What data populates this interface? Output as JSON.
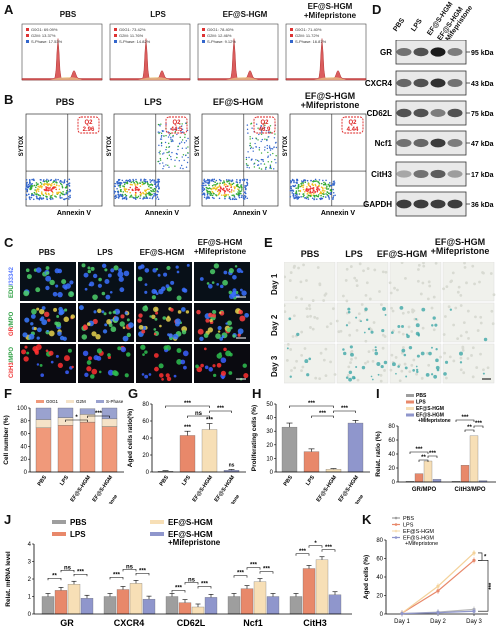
{
  "groups": [
    "PBS",
    "LPS",
    "EF@S-HGM",
    "EF@S-HGM\n+Mifepristone"
  ],
  "groups_short": [
    "PBS",
    "LPS",
    "EF@S-HGM",
    "EF@S-HGM +Mifepristone"
  ],
  "panelA": {
    "label": "A",
    "legends": [
      [
        "G0G1: 69.09%",
        "G2M: 13.37%",
        "S-Phase: 17.53%"
      ],
      [
        "G0G1: 73.42%",
        "G2M: 11.76%",
        "S-Phase: 14.82%"
      ],
      [
        "G0G1: 78.40%",
        "G2M: 12.46%",
        "S-Phase: 9.12%"
      ],
      [
        "G0G1: 71.40%",
        "G2M: 11.72%",
        "S-Phase: 16.87%"
      ]
    ]
  },
  "panelB": {
    "label": "B",
    "ylabel": "SYTOX",
    "xlabel": "Annexin V",
    "quad": "Q2",
    "values": [
      "2.96",
      "44.5",
      "46.9",
      "4.44"
    ]
  },
  "panelC": {
    "label": "C",
    "rows": [
      "EDU/33342",
      "GR/MPO",
      "CitH3/MPO"
    ],
    "scalebar": "20 μm"
  },
  "panelD": {
    "label": "D",
    "proteins": [
      "GR",
      "CXCR4",
      "CD62L",
      "Ncf1",
      "CitH3",
      "GAPDH"
    ],
    "sizes": [
      "95 kDa",
      "43 kDa",
      "75 kDa",
      "47 kDa",
      "17 kDa",
      "36 kDa"
    ]
  },
  "panelE": {
    "label": "E",
    "days": [
      "Day 1",
      "Day 2",
      "Day 3"
    ],
    "scalebar": "100 μm"
  },
  "panelF": {
    "label": "F",
    "ylabel": "Cell number (%)",
    "legend": [
      "G0G1",
      "G2M",
      "S-Phase"
    ],
    "colors": [
      "#f0997a",
      "#f5e3c8",
      "#9aa2cf"
    ],
    "ticks": [
      "0",
      "20",
      "40",
      "60",
      "80",
      "100"
    ],
    "stars": [
      "*",
      "***"
    ]
  },
  "panelG": {
    "label": "G",
    "ylabel": "Aged cells ratio(%)",
    "ticks": [
      "0",
      "20",
      "40",
      "60",
      "80"
    ],
    "sig": [
      "***",
      "***",
      "***",
      "ns",
      "***",
      "ns"
    ]
  },
  "panelH": {
    "label": "H",
    "ylabel": "Proliferating cells (%)",
    "ticks": [
      "0",
      "10",
      "20",
      "30",
      "40",
      "50"
    ],
    "sig": [
      "***",
      "***",
      "***"
    ]
  },
  "panelI": {
    "label": "I",
    "ylabel": "Relat. ratio (%)",
    "ticks": [
      "0",
      "20",
      "40",
      "60",
      "80"
    ],
    "cats": [
      "GR/MPO",
      "CitH3/MPO"
    ],
    "sig": [
      "***",
      "**",
      "***",
      "***",
      "**",
      "***"
    ]
  },
  "panelJ": {
    "label": "J",
    "ylabel": "Relat. mRNA level",
    "ticks": [
      "0",
      "1",
      "2",
      "3",
      "4"
    ],
    "genes": [
      "GR",
      "CXCR4",
      "CD62L",
      "Ncf1",
      "CitH3"
    ],
    "sig": [
      [
        "**",
        "ns",
        "***"
      ],
      [
        "***",
        "ns",
        "***"
      ],
      [
        "***",
        "ns",
        "***"
      ],
      [
        "***",
        "***",
        "***"
      ],
      [
        "***",
        "*",
        "***"
      ]
    ]
  },
  "panelK": {
    "label": "K",
    "ylabel": "Aged cells (%)",
    "ticks": [
      "0",
      "20",
      "40",
      "60",
      "80"
    ],
    "xticks": [
      "Day 1",
      "Day 2",
      "Day 3"
    ],
    "sig": [
      "*",
      "***"
    ]
  },
  "colors": {
    "pbs": "#9e9e9e",
    "lps": "#e8886a",
    "ef": "#f7dfb6",
    "mife": "#8f96cc"
  },
  "chart_data": [
    {
      "type": "bar",
      "panel": "F",
      "categories": [
        "PBS",
        "LPS",
        "EF@S-HGM",
        "EF@S-HGM +Mifepristone"
      ],
      "series": [
        {
          "name": "G0G1",
          "values": [
            69,
            73,
            78,
            71
          ]
        },
        {
          "name": "G2M",
          "values": [
            13,
            12,
            12,
            12
          ]
        },
        {
          "name": "S-Phase",
          "values": [
            18,
            15,
            9,
            17
          ]
        }
      ],
      "ylabel": "Cell number (%)",
      "ylim": [
        0,
        100
      ]
    },
    {
      "type": "bar",
      "panel": "G",
      "categories": [
        "PBS",
        "LPS",
        "EF@S-HGM",
        "EF@S-HGM +Mifepristone"
      ],
      "values": [
        1,
        43,
        50,
        2
      ],
      "errors": [
        0.5,
        5,
        7,
        1
      ],
      "ylabel": "Aged cells ratio(%)",
      "ylim": [
        0,
        80
      ]
    },
    {
      "type": "bar",
      "panel": "H",
      "categories": [
        "PBS",
        "LPS",
        "EF@S-HGM",
        "EF@S-HGM +Mifepristone"
      ],
      "values": [
        33,
        15,
        2,
        36
      ],
      "errors": [
        3,
        2,
        0.5,
        2
      ],
      "ylabel": "Proliferating cells (%)",
      "ylim": [
        0,
        50
      ]
    },
    {
      "type": "bar",
      "panel": "I",
      "categories": [
        "GR/MPO",
        "CitH3/MPO"
      ],
      "series": [
        {
          "name": "PBS",
          "values": [
            1,
            1
          ]
        },
        {
          "name": "LPS",
          "values": [
            12,
            24
          ]
        },
        {
          "name": "EF@S-HGM",
          "values": [
            30,
            66
          ]
        },
        {
          "name": "EF@S-HGM +Mifepristone",
          "values": [
            4,
            2
          ]
        }
      ],
      "ylabel": "Relat. ratio (%)",
      "ylim": [
        0,
        80
      ]
    },
    {
      "type": "bar",
      "panel": "J",
      "categories": [
        "GR",
        "CXCR4",
        "CD62L",
        "Ncf1",
        "CitH3"
      ],
      "series": [
        {
          "name": "PBS",
          "values": [
            1,
            1,
            1,
            1,
            1
          ]
        },
        {
          "name": "LPS",
          "values": [
            1.35,
            1.4,
            0.65,
            1.45,
            2.6
          ]
        },
        {
          "name": "EF@S-HGM",
          "values": [
            1.7,
            1.75,
            0.4,
            1.85,
            3.1
          ]
        },
        {
          "name": "EF@S-HGM +Mifepristone",
          "values": [
            0.9,
            0.85,
            0.95,
            1.0,
            1.1
          ]
        }
      ],
      "ylabel": "Relat. mRNA level",
      "ylim": [
        0,
        4
      ]
    },
    {
      "type": "line",
      "panel": "K",
      "x": [
        "Day 1",
        "Day 2",
        "Day 3"
      ],
      "series": [
        {
          "name": "PBS",
          "values": [
            0.5,
            2,
            5
          ]
        },
        {
          "name": "LPS",
          "values": [
            1,
            25,
            58
          ]
        },
        {
          "name": "EF@S-HGM",
          "values": [
            1,
            30,
            66
          ]
        },
        {
          "name": "EF@S-HGM +Mifepristone",
          "values": [
            0.5,
            1.5,
            3
          ]
        }
      ],
      "ylabel": "Aged cells (%)",
      "ylim": [
        0,
        80
      ]
    }
  ]
}
